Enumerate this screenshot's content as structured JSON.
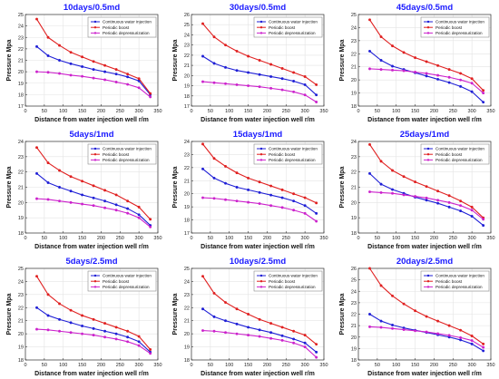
{
  "colors": {
    "continuous": "#1f1fd6",
    "boost": "#e02020",
    "depress": "#cc22cc"
  },
  "chart_data": [
    {
      "type": "line",
      "title": "10days/0.5md",
      "xlabel": "Distance from water injection well  r/m",
      "ylabel": "Pressure  Mpa",
      "xlim": [
        0,
        350
      ],
      "ylim": [
        17,
        25
      ],
      "xticks": [
        "0",
        "50",
        "100",
        "150",
        "200",
        "250",
        "300",
        "350"
      ],
      "yticks": [
        "17",
        "18",
        "19",
        "20",
        "21",
        "22",
        "23",
        "24",
        "25"
      ],
      "legend": {
        "position": "top-right",
        "entries": [
          "Continuous water injection",
          "Periodic boost",
          "Periodic depressurization"
        ]
      },
      "x": [
        30,
        60,
        90,
        120,
        150,
        180,
        210,
        240,
        270,
        300,
        330
      ],
      "series": [
        {
          "name": "Continuous water injection",
          "values": [
            22.2,
            21.4,
            21.0,
            20.7,
            20.45,
            20.2,
            20.0,
            19.8,
            19.55,
            19.2,
            18.0
          ]
        },
        {
          "name": "Periodic boost",
          "values": [
            24.6,
            23.0,
            22.3,
            21.7,
            21.3,
            20.9,
            20.55,
            20.2,
            19.8,
            19.4,
            18.1
          ]
        },
        {
          "name": "Periodic depressurization",
          "values": [
            20.0,
            19.95,
            19.85,
            19.7,
            19.6,
            19.45,
            19.3,
            19.1,
            18.9,
            18.6,
            17.8
          ]
        }
      ]
    },
    {
      "type": "line",
      "title": "30days/0.5md",
      "xlabel": "Distance from water injection well  r/m",
      "ylabel": "Pressure  Mpa",
      "xlim": [
        0,
        350
      ],
      "ylim": [
        17,
        26
      ],
      "xticks": [
        "0",
        "50",
        "100",
        "150",
        "200",
        "250",
        "300",
        "350"
      ],
      "yticks": [
        "17",
        "18",
        "19",
        "20",
        "21",
        "22",
        "23",
        "24",
        "25",
        "26"
      ],
      "legend": {
        "position": "top-right",
        "entries": [
          "Continuous water injection",
          "Periodic boost",
          "Periodic depressurization"
        ]
      },
      "x": [
        30,
        60,
        90,
        120,
        150,
        180,
        210,
        240,
        270,
        300,
        330
      ],
      "series": [
        {
          "name": "Continuous water injection",
          "values": [
            21.9,
            21.2,
            20.8,
            20.5,
            20.3,
            20.1,
            19.9,
            19.7,
            19.45,
            19.1,
            18.1
          ]
        },
        {
          "name": "Periodic boost",
          "values": [
            25.1,
            23.8,
            23.0,
            22.4,
            21.9,
            21.5,
            21.1,
            20.7,
            20.3,
            19.9,
            19.1
          ]
        },
        {
          "name": "Periodic depressurization",
          "values": [
            19.4,
            19.3,
            19.2,
            19.1,
            19.0,
            18.9,
            18.75,
            18.6,
            18.4,
            18.1,
            17.4
          ]
        }
      ]
    },
    {
      "type": "line",
      "title": "45days/0.5md",
      "xlabel": "Distance from water injection well  r/m",
      "ylabel": "Pressure  Mpa",
      "xlim": [
        0,
        350
      ],
      "ylim": [
        18,
        25
      ],
      "xticks": [
        "0",
        "50",
        "100",
        "150",
        "200",
        "250",
        "300",
        "350"
      ],
      "yticks": [
        "18",
        "19",
        "20",
        "21",
        "22",
        "23",
        "24",
        "25"
      ],
      "legend": {
        "position": "top-right",
        "entries": [
          "Continuous water injection",
          "Periodic boost",
          "Periodic depressurization"
        ]
      },
      "x": [
        30,
        60,
        90,
        120,
        150,
        180,
        210,
        240,
        270,
        300,
        330
      ],
      "series": [
        {
          "name": "Continuous water injection",
          "values": [
            22.2,
            21.5,
            21.05,
            20.8,
            20.55,
            20.3,
            20.05,
            19.8,
            19.5,
            19.1,
            18.3
          ]
        },
        {
          "name": "Periodic boost",
          "values": [
            24.6,
            23.3,
            22.6,
            22.1,
            21.7,
            21.4,
            21.1,
            20.8,
            20.5,
            20.1,
            19.2
          ]
        },
        {
          "name": "Periodic depressurization",
          "values": [
            20.85,
            20.8,
            20.75,
            20.7,
            20.6,
            20.5,
            20.35,
            20.2,
            20.0,
            19.75,
            19.0
          ]
        }
      ]
    },
    {
      "type": "line",
      "title": "5days/1md",
      "xlabel": "Distance from water injection well  r/m",
      "ylabel": "Pressure  Mpa",
      "xlim": [
        0,
        350
      ],
      "ylim": [
        18,
        24
      ],
      "xticks": [
        "0",
        "50",
        "100",
        "150",
        "200",
        "250",
        "300",
        "350"
      ],
      "yticks": [
        "18",
        "19",
        "20",
        "21",
        "22",
        "23",
        "24"
      ],
      "legend": {
        "position": "top-right",
        "entries": [
          "Continuous water injection",
          "Periodic boost",
          "Periodic depressurization"
        ]
      },
      "x": [
        30,
        60,
        90,
        120,
        150,
        180,
        210,
        240,
        270,
        300,
        330
      ],
      "series": [
        {
          "name": "Continuous water injection",
          "values": [
            21.9,
            21.3,
            21.0,
            20.75,
            20.5,
            20.3,
            20.1,
            19.85,
            19.6,
            19.2,
            18.5
          ]
        },
        {
          "name": "Periodic boost",
          "values": [
            23.6,
            22.6,
            22.1,
            21.7,
            21.4,
            21.1,
            20.8,
            20.5,
            20.1,
            19.7,
            18.9
          ]
        },
        {
          "name": "Periodic depressurization",
          "values": [
            20.25,
            20.2,
            20.1,
            20.0,
            19.9,
            19.8,
            19.65,
            19.5,
            19.3,
            19.0,
            18.4
          ]
        }
      ]
    },
    {
      "type": "line",
      "title": "15days/1md",
      "xlabel": "Distance from water injection well  r/m",
      "ylabel": "Pressure  Mpa",
      "xlim": [
        0,
        350
      ],
      "ylim": [
        17,
        24
      ],
      "xticks": [
        "0",
        "50",
        "100",
        "150",
        "200",
        "250",
        "300",
        "350"
      ],
      "yticks": [
        "17",
        "18",
        "19",
        "20",
        "21",
        "22",
        "23",
        "24"
      ],
      "legend": {
        "position": "top-right",
        "entries": [
          "Continuous water injection",
          "Periodic boost",
          "Periodic depressurization"
        ]
      },
      "x": [
        30,
        60,
        90,
        120,
        150,
        180,
        210,
        240,
        270,
        300,
        330
      ],
      "series": [
        {
          "name": "Continuous water injection",
          "values": [
            21.9,
            21.2,
            20.8,
            20.5,
            20.3,
            20.1,
            19.9,
            19.7,
            19.45,
            19.1,
            18.5
          ]
        },
        {
          "name": "Periodic boost",
          "values": [
            23.8,
            22.7,
            22.1,
            21.6,
            21.2,
            20.9,
            20.6,
            20.3,
            20.0,
            19.7,
            19.3
          ]
        },
        {
          "name": "Periodic depressurization",
          "values": [
            19.7,
            19.65,
            19.55,
            19.45,
            19.35,
            19.25,
            19.1,
            18.95,
            18.75,
            18.5,
            17.9
          ]
        }
      ]
    },
    {
      "type": "line",
      "title": "25days/1md",
      "xlabel": "Distance from water injection well  r/m",
      "ylabel": "Pressure  Mpa",
      "xlim": [
        0,
        350
      ],
      "ylim": [
        18,
        24
      ],
      "xticks": [
        "0",
        "50",
        "100",
        "150",
        "200",
        "250",
        "300",
        "350"
      ],
      "yticks": [
        "18",
        "19",
        "20",
        "21",
        "22",
        "23",
        "24"
      ],
      "legend": {
        "position": "top-right",
        "entries": [
          "Continuous water injection",
          "Periodic boost",
          "Periodic depressurization"
        ]
      },
      "x": [
        30,
        60,
        90,
        120,
        150,
        180,
        210,
        240,
        270,
        300,
        330
      ],
      "series": [
        {
          "name": "Continuous water injection",
          "values": [
            21.9,
            21.2,
            20.85,
            20.6,
            20.35,
            20.15,
            19.95,
            19.7,
            19.45,
            19.1,
            18.5
          ]
        },
        {
          "name": "Periodic boost",
          "values": [
            23.8,
            22.7,
            22.1,
            21.7,
            21.35,
            21.05,
            20.75,
            20.45,
            20.1,
            19.7,
            19.0
          ]
        },
        {
          "name": "Periodic depressurization",
          "values": [
            20.7,
            20.65,
            20.6,
            20.5,
            20.4,
            20.3,
            20.15,
            20.0,
            19.8,
            19.5,
            18.9
          ]
        }
      ]
    },
    {
      "type": "line",
      "title": "5days/2.5md",
      "xlabel": "Distance from water injection well  r/m",
      "ylabel": "Pressure  Mpa",
      "xlim": [
        0,
        350
      ],
      "ylim": [
        18,
        25
      ],
      "xticks": [
        "0",
        "50",
        "100",
        "150",
        "200",
        "250",
        "300",
        "350"
      ],
      "yticks": [
        "18",
        "19",
        "20",
        "21",
        "22",
        "23",
        "24",
        "25"
      ],
      "legend": {
        "position": "top-right",
        "entries": [
          "Continuous water injection",
          "Periodic boost",
          "Periodic depressurization"
        ]
      },
      "x": [
        30,
        60,
        90,
        120,
        150,
        180,
        210,
        240,
        270,
        300,
        330
      ],
      "series": [
        {
          "name": "Continuous water injection",
          "values": [
            22.0,
            21.4,
            21.1,
            20.85,
            20.6,
            20.4,
            20.2,
            20.0,
            19.75,
            19.4,
            18.6
          ]
        },
        {
          "name": "Periodic boost",
          "values": [
            24.4,
            23.0,
            22.3,
            21.8,
            21.4,
            21.1,
            20.8,
            20.5,
            20.2,
            19.8,
            18.8
          ]
        },
        {
          "name": "Periodic depressurization",
          "values": [
            20.35,
            20.3,
            20.2,
            20.1,
            20.0,
            19.9,
            19.75,
            19.6,
            19.4,
            19.1,
            18.5
          ]
        }
      ]
    },
    {
      "type": "line",
      "title": "10days/2.5md",
      "xlabel": "Distance from water injection well  r/m",
      "ylabel": "Pressure  Mpa",
      "xlim": [
        0,
        350
      ],
      "ylim": [
        18,
        25
      ],
      "xticks": [
        "0",
        "50",
        "100",
        "150",
        "200",
        "250",
        "300",
        "350"
      ],
      "yticks": [
        "18",
        "19",
        "20",
        "21",
        "22",
        "23",
        "24",
        "25"
      ],
      "legend": {
        "position": "top-right",
        "entries": [
          "Continuous water injection",
          "Periodic boost",
          "Periodic depressurization"
        ]
      },
      "x": [
        30,
        60,
        90,
        120,
        150,
        180,
        210,
        240,
        270,
        300,
        330
      ],
      "series": [
        {
          "name": "Continuous water injection",
          "values": [
            21.9,
            21.3,
            21.0,
            20.75,
            20.5,
            20.3,
            20.1,
            19.85,
            19.6,
            19.3,
            18.6
          ]
        },
        {
          "name": "Periodic boost",
          "values": [
            24.4,
            23.1,
            22.4,
            21.9,
            21.5,
            21.1,
            20.8,
            20.5,
            20.2,
            19.9,
            19.2
          ]
        },
        {
          "name": "Periodic depressurization",
          "values": [
            20.25,
            20.2,
            20.1,
            20.0,
            19.9,
            19.8,
            19.65,
            19.5,
            19.3,
            19.0,
            18.2
          ]
        }
      ]
    },
    {
      "type": "line",
      "title": "20days/2.5md",
      "xlabel": "Distance from water injection well  r/m",
      "ylabel": "Pressure  Mpa",
      "xlim": [
        0,
        350
      ],
      "ylim": [
        18,
        26
      ],
      "xticks": [
        "0",
        "50",
        "100",
        "150",
        "200",
        "250",
        "300",
        "350"
      ],
      "yticks": [
        "18",
        "19",
        "20",
        "21",
        "22",
        "23",
        "24",
        "25",
        "26"
      ],
      "legend": {
        "position": "top-right",
        "entries": [
          "Continuous water injection",
          "Periodic boost",
          "Periodic depressurization"
        ]
      },
      "x": [
        30,
        60,
        90,
        120,
        150,
        180,
        210,
        240,
        270,
        300,
        330
      ],
      "series": [
        {
          "name": "Continuous water injection",
          "values": [
            22.0,
            21.4,
            21.05,
            20.8,
            20.6,
            20.4,
            20.2,
            20.0,
            19.75,
            19.4,
            18.8
          ]
        },
        {
          "name": "Periodic boost",
          "values": [
            26.0,
            24.5,
            23.6,
            22.9,
            22.3,
            21.8,
            21.4,
            21.0,
            20.6,
            20.1,
            19.4
          ]
        },
        {
          "name": "Periodic depressurization",
          "values": [
            20.9,
            20.85,
            20.75,
            20.65,
            20.55,
            20.45,
            20.3,
            20.15,
            19.95,
            19.7,
            19.1
          ]
        }
      ]
    }
  ]
}
